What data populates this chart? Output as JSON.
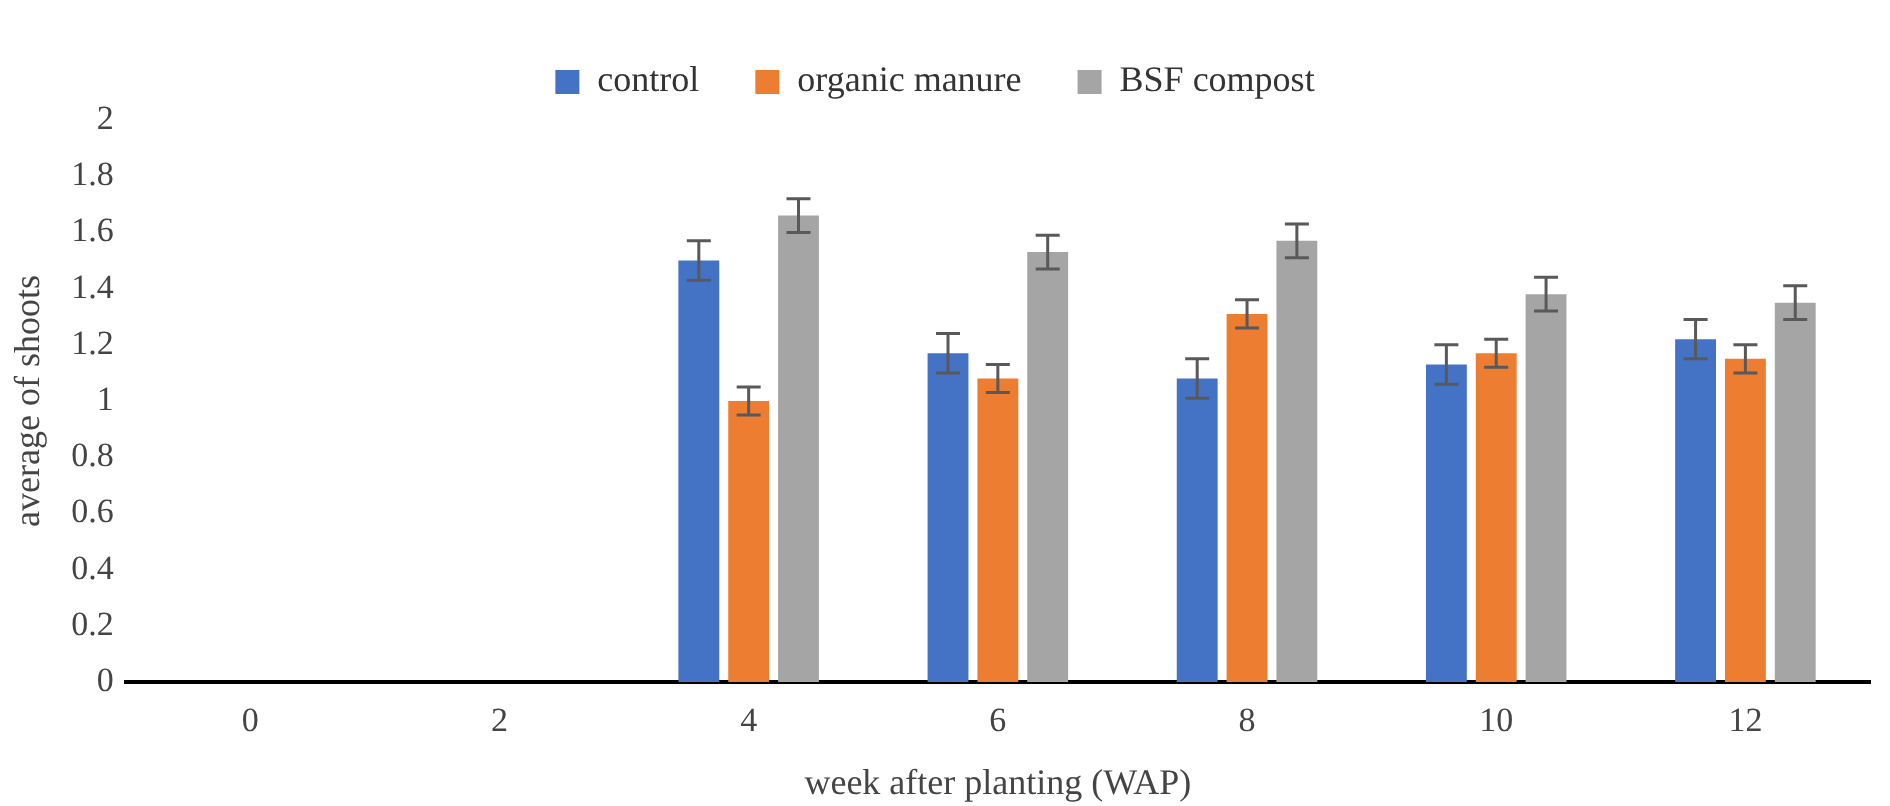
{
  "chart_data": {
    "type": "bar",
    "xlabel": "week after planting (WAP)",
    "ylabel": "average of shoots",
    "categories": [
      "0",
      "2",
      "4",
      "6",
      "8",
      "10",
      "12"
    ],
    "series": [
      {
        "name": "control",
        "color": "#4472c4",
        "values": [
          null,
          null,
          1.5,
          1.17,
          1.08,
          1.13,
          1.22
        ],
        "errors": [
          null,
          null,
          0.07,
          0.07,
          0.07,
          0.07,
          0.07
        ]
      },
      {
        "name": "organic manure",
        "color": "#ed7d31",
        "values": [
          null,
          null,
          1.0,
          1.08,
          1.31,
          1.17,
          1.15
        ],
        "errors": [
          null,
          null,
          0.05,
          0.05,
          0.05,
          0.05,
          0.05
        ]
      },
      {
        "name": "BSF compost",
        "color": "#a5a5a5",
        "values": [
          null,
          null,
          1.66,
          1.53,
          1.57,
          1.38,
          1.35
        ],
        "errors": [
          null,
          null,
          0.06,
          0.06,
          0.06,
          0.06,
          0.06
        ]
      }
    ],
    "ylim": [
      0,
      2
    ],
    "yticks": [
      0,
      0.2,
      0.4,
      0.6,
      0.8,
      1,
      1.2,
      1.4,
      1.6,
      1.8,
      2
    ],
    "grid": false,
    "legend": "top"
  }
}
